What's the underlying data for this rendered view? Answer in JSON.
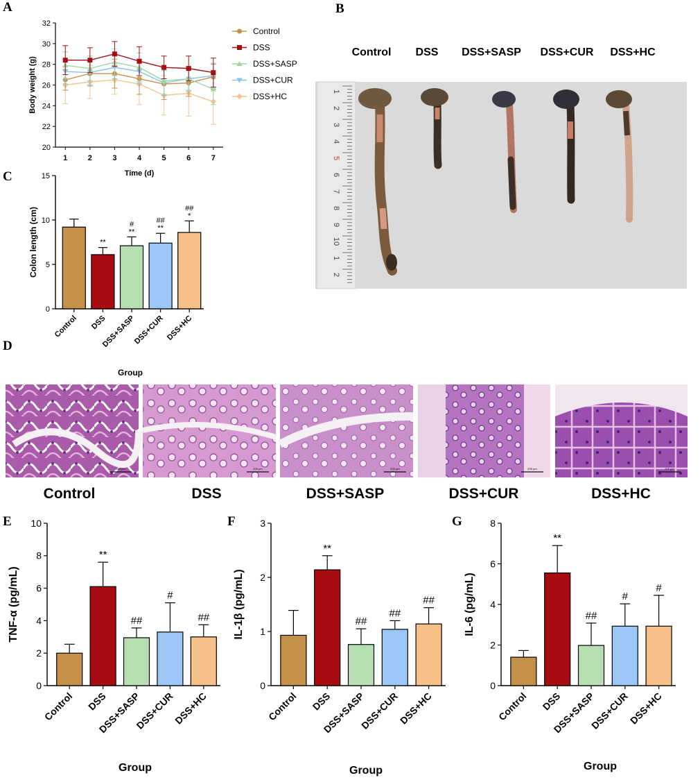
{
  "panels": {
    "A": "A",
    "B": "B",
    "C": "C",
    "D": "D",
    "E": "E",
    "F": "F",
    "G": "G"
  },
  "colors": {
    "Control": "#c4914a",
    "DSS": "#a70d10",
    "DSS+SASP": "#b6dfb1",
    "DSS+CUR": "#9cc6f5",
    "DSS+HC": "#f8c089",
    "line_Control": "#c4914a",
    "line_DSS": "#a30f14",
    "line_SASP": "#9ad8a4",
    "line_CUR": "#86c3ea",
    "line_HC": "#f6c48e"
  },
  "photo_b": {
    "labels": [
      "Control",
      "DSS",
      "DSS+SASP",
      "DSS+CUR",
      "DSS+HC"
    ],
    "ruler_numbers": [
      "1",
      "2",
      "3",
      "4",
      "5",
      "6",
      "7",
      "8",
      "9",
      "10",
      "1",
      "2"
    ]
  },
  "photo_d": {
    "labels": [
      "Control",
      "DSS",
      "DSS+SASP",
      "DSS+CUR",
      "DSS+HC"
    ],
    "scale_text": "200 μm"
  },
  "chart_data": [
    {
      "panel": "A",
      "type": "line",
      "xlabel": "Time (d)",
      "ylabel": "Body weight (g)",
      "x": [
        1,
        2,
        3,
        4,
        5,
        6,
        7
      ],
      "xlim": [
        0.6,
        7.4
      ],
      "ylim": [
        20,
        32
      ],
      "yticks": [
        20,
        22,
        24,
        26,
        28,
        30,
        32
      ],
      "legend_placement": "right",
      "series": [
        {
          "name": "Control",
          "values": [
            26.5,
            27.1,
            27.1,
            26.6,
            26.1,
            26.2,
            26.8
          ],
          "err": [
            1.0,
            1.2,
            1.4,
            1.5,
            1.5,
            1.3,
            1.2
          ]
        },
        {
          "name": "DSS",
          "values": [
            28.4,
            28.4,
            29.0,
            28.3,
            27.7,
            27.6,
            27.2
          ],
          "err": [
            1.4,
            1.2,
            1.2,
            1.4,
            1.1,
            1.2,
            1.4
          ]
        },
        {
          "name": "DSS+SASP",
          "values": [
            27.9,
            27.6,
            28.2,
            27.7,
            26.4,
            26.6,
            25.6
          ],
          "err": [
            1.3,
            1.2,
            1.3,
            1.4,
            1.3,
            1.2,
            1.5
          ]
        },
        {
          "name": "DSS+CUR",
          "values": [
            27.3,
            27.2,
            27.7,
            27.3,
            26.2,
            26.6,
            26.9
          ],
          "err": [
            1.2,
            1.2,
            1.1,
            1.2,
            1.2,
            1.1,
            1.2
          ]
        },
        {
          "name": "DSS+HC",
          "values": [
            26.0,
            26.3,
            26.5,
            26.1,
            25.0,
            25.2,
            24.4
          ],
          "err": [
            1.8,
            1.6,
            1.4,
            2.0,
            1.9,
            2.2,
            2.2
          ]
        }
      ]
    },
    {
      "panel": "C",
      "type": "bar",
      "xlabel": "Group",
      "ylabel": "Colon length (cm)",
      "categories": [
        "Control",
        "DSS",
        "DSS+SASP",
        "DSS+CUR",
        "DSS+HC"
      ],
      "values": [
        9.2,
        6.1,
        7.1,
        7.4,
        8.6
      ],
      "err": [
        0.9,
        0.8,
        1.0,
        1.1,
        1.3
      ],
      "annotations_top": [
        "",
        "",
        "#",
        "##",
        "##"
      ],
      "annotations_bottom": [
        "",
        "**",
        "**",
        "**",
        "*"
      ],
      "ylim": [
        0,
        15
      ],
      "yticks": [
        0,
        5,
        10,
        15
      ]
    },
    {
      "panel": "E",
      "type": "bar",
      "xlabel": "Group",
      "ylabel": "TNF-α (pg/mL)",
      "categories": [
        "Control",
        "DSS",
        "DSS+SASP",
        "DSS+CUR",
        "DSS+HC"
      ],
      "values": [
        2.0,
        6.1,
        2.95,
        3.3,
        3.0
      ],
      "err": [
        0.55,
        1.5,
        0.6,
        1.8,
        0.75
      ],
      "annotations": [
        "",
        "**",
        "##",
        "#",
        "##"
      ],
      "ylim": [
        0,
        10
      ],
      "yticks": [
        0,
        2,
        4,
        6,
        8,
        10
      ]
    },
    {
      "panel": "F",
      "type": "bar",
      "xlabel": "Group",
      "ylabel": "IL-1β (pg/mL)",
      "categories": [
        "Control",
        "DSS",
        "DSS+SASP",
        "DSS+CUR",
        "DSS+HC"
      ],
      "values": [
        0.93,
        2.14,
        0.76,
        1.04,
        1.14
      ],
      "err": [
        0.46,
        0.26,
        0.29,
        0.16,
        0.3
      ],
      "annotations": [
        "",
        "**",
        "##",
        "##",
        "##"
      ],
      "ylim": [
        0,
        3
      ],
      "yticks": [
        0,
        1,
        2,
        3
      ]
    },
    {
      "panel": "G",
      "type": "bar",
      "xlabel": "Group",
      "ylabel": "IL-6 (pg/mL)",
      "categories": [
        "Control",
        "DSS",
        "DSS+SASP",
        "DSS+CUR",
        "DSS+HC"
      ],
      "values": [
        1.4,
        5.55,
        1.98,
        2.93,
        2.93
      ],
      "err": [
        0.33,
        1.35,
        1.1,
        1.1,
        1.52
      ],
      "annotations": [
        "",
        "**",
        "##",
        "#",
        "#"
      ],
      "ylim": [
        0,
        8
      ],
      "yticks": [
        0,
        2,
        4,
        6,
        8
      ]
    }
  ]
}
